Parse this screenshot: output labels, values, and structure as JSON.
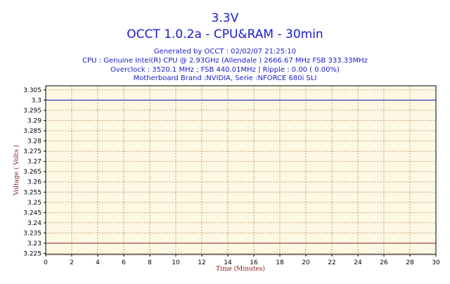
{
  "header": {
    "title_line1": "3.3V",
    "title_line2": "OCCT 1.0.2a - CPU&RAM -  30min",
    "generated": "Generated by OCCT : 02/02/07 21:25:10",
    "cpu": "CPU : Genuine Intel(R) CPU          @ 2.93GHz (Allendale ) 2666.67 MHz FSB 333.33MHz",
    "overclock": "Overclock : 3520.1 MHz ; FSB 440.01MHz | Ripple : 0.00 ( 0.00%)",
    "motherboard": "Motherboard Brand :NVIDIA, Serie :NFORCE 680i SLI"
  },
  "colors": {
    "title": "#1a1acc",
    "plot_bg": "#fdf8e4",
    "grid": "#c89a6a",
    "series_main": "#1a1aa8",
    "series_min": "#8b1a1a",
    "axis_label": "#8b1a1a"
  },
  "chart_data": {
    "type": "line",
    "xlabel": "Time (Minutes)",
    "ylabel": "Voltage ( Volts )",
    "xlim": [
      0,
      30
    ],
    "ylim": [
      3.2245,
      3.307
    ],
    "x_ticks": [
      "0",
      "2",
      "4",
      "6",
      "8",
      "10",
      "12",
      "14",
      "16",
      "18",
      "20",
      "22",
      "24",
      "26",
      "28",
      "30"
    ],
    "y_ticks": [
      "3.305",
      "3.3",
      "3.295",
      "3.29",
      "3.285",
      "3.28",
      "3.275",
      "3.27",
      "3.265",
      "3.26",
      "3.255",
      "3.25",
      "3.245",
      "3.24",
      "3.235",
      "3.23",
      "3.225"
    ],
    "grid": true,
    "series": [
      {
        "x": [
          0,
          30
        ],
        "values": [
          3.3,
          3.3
        ]
      },
      {
        "x": [
          0,
          30
        ],
        "values": [
          3.23,
          3.23
        ]
      }
    ]
  }
}
